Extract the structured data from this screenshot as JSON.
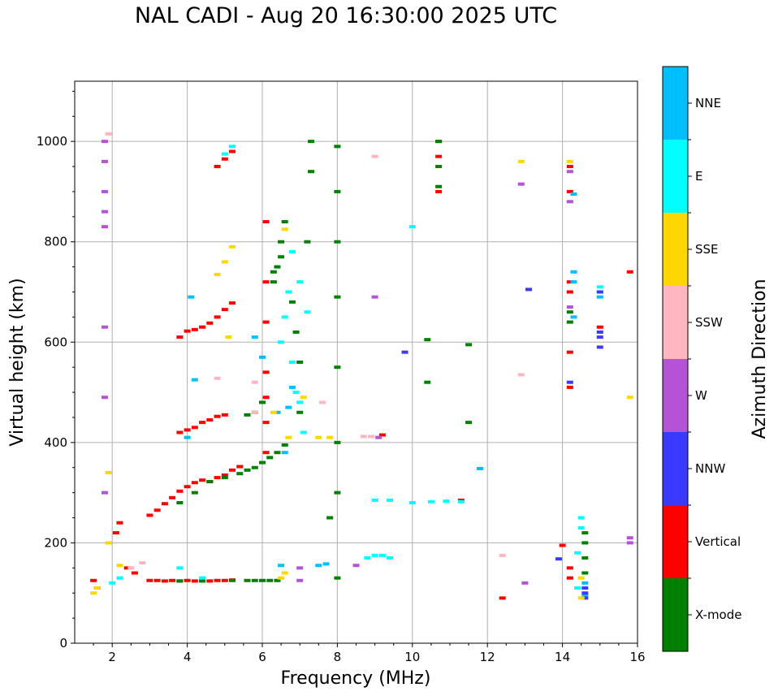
{
  "chart_data": {
    "type": "scatter",
    "title": "NAL CADI - Aug 20 16:30:00 2025 UTC",
    "xlabel": "Frequency (MHz)",
    "ylabel": "Virtual height (km)",
    "xlim": [
      1,
      16
    ],
    "ylim": [
      0,
      1120
    ],
    "xticks": [
      2,
      4,
      6,
      8,
      10,
      12,
      14,
      16
    ],
    "yticks": [
      0,
      200,
      400,
      600,
      800,
      1000
    ],
    "grid": true,
    "colorbar": {
      "label": "Azimuth Direction",
      "categories": [
        {
          "name": "X-mode",
          "color": "#008000"
        },
        {
          "name": "Vertical",
          "color": "#ff0000"
        },
        {
          "name": "NNW",
          "color": "#3a3aff"
        },
        {
          "name": "W",
          "color": "#b553d6"
        },
        {
          "name": "SSW",
          "color": "#ffb6c1"
        },
        {
          "name": "SSE",
          "color": "#ffd700"
        },
        {
          "name": "E",
          "color": "#00ffff"
        },
        {
          "name": "NNE",
          "color": "#00bfff"
        }
      ]
    },
    "series": [
      {
        "name": "Vertical",
        "points": [
          [
            3.0,
            125
          ],
          [
            3.2,
            125
          ],
          [
            3.4,
            124
          ],
          [
            3.6,
            125
          ],
          [
            3.8,
            124
          ],
          [
            4.0,
            125
          ],
          [
            4.2,
            124
          ],
          [
            4.4,
            125
          ],
          [
            4.6,
            124
          ],
          [
            4.8,
            125
          ],
          [
            5.0,
            125
          ],
          [
            5.2,
            126
          ],
          [
            3.0,
            255
          ],
          [
            3.2,
            265
          ],
          [
            3.4,
            278
          ],
          [
            3.6,
            290
          ],
          [
            3.8,
            303
          ],
          [
            4.0,
            312
          ],
          [
            4.2,
            320
          ],
          [
            4.4,
            325
          ],
          [
            4.6,
            322
          ],
          [
            4.8,
            330
          ],
          [
            5.0,
            335
          ],
          [
            5.2,
            345
          ],
          [
            5.4,
            352
          ],
          [
            3.8,
            420
          ],
          [
            4.0,
            425
          ],
          [
            4.2,
            430
          ],
          [
            4.4,
            440
          ],
          [
            4.6,
            445
          ],
          [
            4.8,
            452
          ],
          [
            5.0,
            455
          ],
          [
            3.8,
            610
          ],
          [
            4.0,
            622
          ],
          [
            4.2,
            625
          ],
          [
            4.4,
            630
          ],
          [
            4.6,
            638
          ],
          [
            4.8,
            650
          ],
          [
            5.0,
            665
          ],
          [
            5.2,
            678
          ],
          [
            4.8,
            950
          ],
          [
            5.0,
            965
          ],
          [
            5.2,
            980
          ],
          [
            1.6,
            110
          ],
          [
            1.5,
            125
          ],
          [
            2.1,
            220
          ],
          [
            2.2,
            240
          ],
          [
            2.4,
            150
          ],
          [
            2.6,
            140
          ],
          [
            6.1,
            540
          ],
          [
            6.1,
            490
          ],
          [
            6.1,
            440
          ],
          [
            6.1,
            380
          ],
          [
            6.1,
            640
          ],
          [
            6.1,
            720
          ],
          [
            6.1,
            840
          ],
          [
            10.7,
            1000
          ],
          [
            10.7,
            970
          ],
          [
            10.7,
            900
          ],
          [
            14.2,
            950
          ],
          [
            14.2,
            900
          ],
          [
            14.2,
            720
          ],
          [
            14.2,
            700
          ],
          [
            14.2,
            510
          ],
          [
            14.2,
            580
          ],
          [
            14.2,
            150
          ],
          [
            14.2,
            130
          ],
          [
            14.0,
            195
          ],
          [
            15.0,
            630
          ],
          [
            15.8,
            740
          ],
          [
            12.4,
            90
          ],
          [
            11.3,
            285
          ],
          [
            9.2,
            415
          ]
        ]
      },
      {
        "name": "X-mode",
        "points": [
          [
            3.8,
            124
          ],
          [
            4.4,
            124
          ],
          [
            5.2,
            125
          ],
          [
            5.6,
            125
          ],
          [
            5.8,
            125
          ],
          [
            6.0,
            125
          ],
          [
            6.2,
            125
          ],
          [
            6.4,
            125
          ],
          [
            3.8,
            280
          ],
          [
            4.2,
            300
          ],
          [
            4.6,
            322
          ],
          [
            5.0,
            330
          ],
          [
            5.4,
            338
          ],
          [
            5.6,
            345
          ],
          [
            5.8,
            350
          ],
          [
            6.0,
            360
          ],
          [
            6.2,
            370
          ],
          [
            6.4,
            380
          ],
          [
            6.6,
            395
          ],
          [
            5.6,
            455
          ],
          [
            5.8,
            460
          ],
          [
            6.0,
            480
          ],
          [
            6.3,
            720
          ],
          [
            6.3,
            740
          ],
          [
            6.4,
            750
          ],
          [
            6.5,
            770
          ],
          [
            6.5,
            800
          ],
          [
            6.6,
            840
          ],
          [
            6.8,
            680
          ],
          [
            6.9,
            620
          ],
          [
            7.0,
            560
          ],
          [
            7.0,
            460
          ],
          [
            7.2,
            800
          ],
          [
            7.3,
            1000
          ],
          [
            7.3,
            940
          ],
          [
            7.8,
            250
          ],
          [
            8.0,
            130
          ],
          [
            8.0,
            300
          ],
          [
            8.0,
            400
          ],
          [
            8.0,
            550
          ],
          [
            8.0,
            690
          ],
          [
            8.0,
            800
          ],
          [
            8.0,
            900
          ],
          [
            8.0,
            990
          ],
          [
            10.7,
            910
          ],
          [
            10.7,
            950
          ],
          [
            10.7,
            1000
          ],
          [
            10.4,
            520
          ],
          [
            10.4,
            605
          ],
          [
            11.5,
            595
          ],
          [
            11.5,
            440
          ],
          [
            14.2,
            640
          ],
          [
            14.2,
            660
          ],
          [
            14.6,
            220
          ],
          [
            14.6,
            200
          ],
          [
            14.6,
            170
          ],
          [
            14.6,
            140
          ]
        ]
      },
      {
        "name": "E",
        "points": [
          [
            9.0,
            175
          ],
          [
            9.2,
            175
          ],
          [
            9.4,
            170
          ],
          [
            8.8,
            170
          ],
          [
            9.0,
            285
          ],
          [
            9.4,
            285
          ],
          [
            10.0,
            280
          ],
          [
            10.5,
            282
          ],
          [
            10.9,
            283
          ],
          [
            11.3,
            282
          ],
          [
            6.9,
            500
          ],
          [
            7.0,
            480
          ],
          [
            6.8,
            560
          ],
          [
            6.5,
            600
          ],
          [
            6.6,
            650
          ],
          [
            6.7,
            700
          ],
          [
            6.8,
            780
          ],
          [
            7.1,
            420
          ],
          [
            7.2,
            660
          ],
          [
            7.0,
            720
          ],
          [
            5.2,
            990
          ],
          [
            5.0,
            975
          ],
          [
            10.0,
            830
          ],
          [
            15.0,
            700
          ],
          [
            15.0,
            710
          ],
          [
            14.5,
            230
          ],
          [
            14.5,
            250
          ],
          [
            14.4,
            180
          ],
          [
            14.4,
            110
          ],
          [
            2.0,
            120
          ],
          [
            2.2,
            130
          ],
          [
            3.8,
            150
          ],
          [
            4.4,
            130
          ]
        ]
      },
      {
        "name": "NNE",
        "points": [
          [
            7.5,
            155
          ],
          [
            7.7,
            158
          ],
          [
            6.5,
            155
          ],
          [
            6.0,
            570
          ],
          [
            6.4,
            460
          ],
          [
            6.6,
            380
          ],
          [
            6.7,
            470
          ],
          [
            6.8,
            510
          ],
          [
            5.8,
            610
          ],
          [
            4.2,
            525
          ],
          [
            4.0,
            410
          ],
          [
            4.1,
            690
          ],
          [
            11.8,
            348
          ],
          [
            14.3,
            720
          ],
          [
            14.3,
            740
          ],
          [
            14.3,
            650
          ],
          [
            14.3,
            895
          ],
          [
            14.6,
            95
          ],
          [
            14.6,
            120
          ],
          [
            15.0,
            690
          ]
        ]
      },
      {
        "name": "NNW",
        "points": [
          [
            14.6,
            90
          ],
          [
            14.6,
            100
          ],
          [
            14.6,
            110
          ],
          [
            15.0,
            700
          ],
          [
            15.0,
            610
          ],
          [
            15.0,
            590
          ],
          [
            15.0,
            620
          ],
          [
            13.1,
            705
          ],
          [
            13.9,
            168
          ],
          [
            9.8,
            580
          ],
          [
            14.2,
            520
          ]
        ]
      },
      {
        "name": "W",
        "points": [
          [
            1.8,
            1000
          ],
          [
            1.8,
            960
          ],
          [
            1.8,
            900
          ],
          [
            1.8,
            860
          ],
          [
            1.8,
            830
          ],
          [
            1.8,
            630
          ],
          [
            1.8,
            490
          ],
          [
            1.8,
            300
          ],
          [
            7.0,
            150
          ],
          [
            7.0,
            125
          ],
          [
            8.5,
            155
          ],
          [
            9.0,
            690
          ],
          [
            9.1,
            410
          ],
          [
            12.9,
            915
          ],
          [
            13.0,
            120
          ],
          [
            15.8,
            200
          ],
          [
            15.8,
            210
          ],
          [
            14.2,
            880
          ],
          [
            14.2,
            670
          ],
          [
            14.2,
            940
          ]
        ]
      },
      {
        "name": "SSE",
        "points": [
          [
            1.5,
            100
          ],
          [
            1.6,
            110
          ],
          [
            1.9,
            200
          ],
          [
            1.9,
            340
          ],
          [
            2.2,
            155
          ],
          [
            6.5,
            130
          ],
          [
            6.6,
            140
          ],
          [
            5.1,
            610
          ],
          [
            4.8,
            735
          ],
          [
            5.0,
            760
          ],
          [
            5.2,
            790
          ],
          [
            6.6,
            825
          ],
          [
            6.3,
            460
          ],
          [
            6.7,
            410
          ],
          [
            7.1,
            490
          ],
          [
            12.9,
            960
          ],
          [
            14.2,
            960
          ],
          [
            14.5,
            90
          ],
          [
            14.5,
            130
          ],
          [
            15.8,
            490
          ],
          [
            7.5,
            410
          ],
          [
            7.8,
            410
          ]
        ]
      },
      {
        "name": "SSW",
        "points": [
          [
            1.9,
            1015
          ],
          [
            2.5,
            150
          ],
          [
            2.8,
            160
          ],
          [
            4.8,
            528
          ],
          [
            5.8,
            520
          ],
          [
            5.8,
            460
          ],
          [
            8.7,
            412
          ],
          [
            8.9,
            412
          ],
          [
            12.4,
            175
          ],
          [
            12.9,
            535
          ],
          [
            9.0,
            970
          ],
          [
            7.6,
            480
          ]
        ]
      }
    ]
  }
}
